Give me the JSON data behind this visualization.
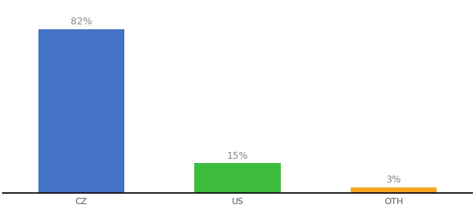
{
  "categories": [
    "CZ",
    "US",
    "OTH"
  ],
  "values": [
    82,
    15,
    3
  ],
  "bar_colors": [
    "#4472c4",
    "#3dbb3d",
    "#f5a623"
  ],
  "label_texts": [
    "82%",
    "15%",
    "3%"
  ],
  "background_color": "#ffffff",
  "label_color": "#888888",
  "label_fontsize": 10,
  "tick_fontsize": 9,
  "ylim": [
    0,
    95
  ],
  "bar_width": 0.55,
  "x_positions": [
    0,
    1,
    2
  ]
}
